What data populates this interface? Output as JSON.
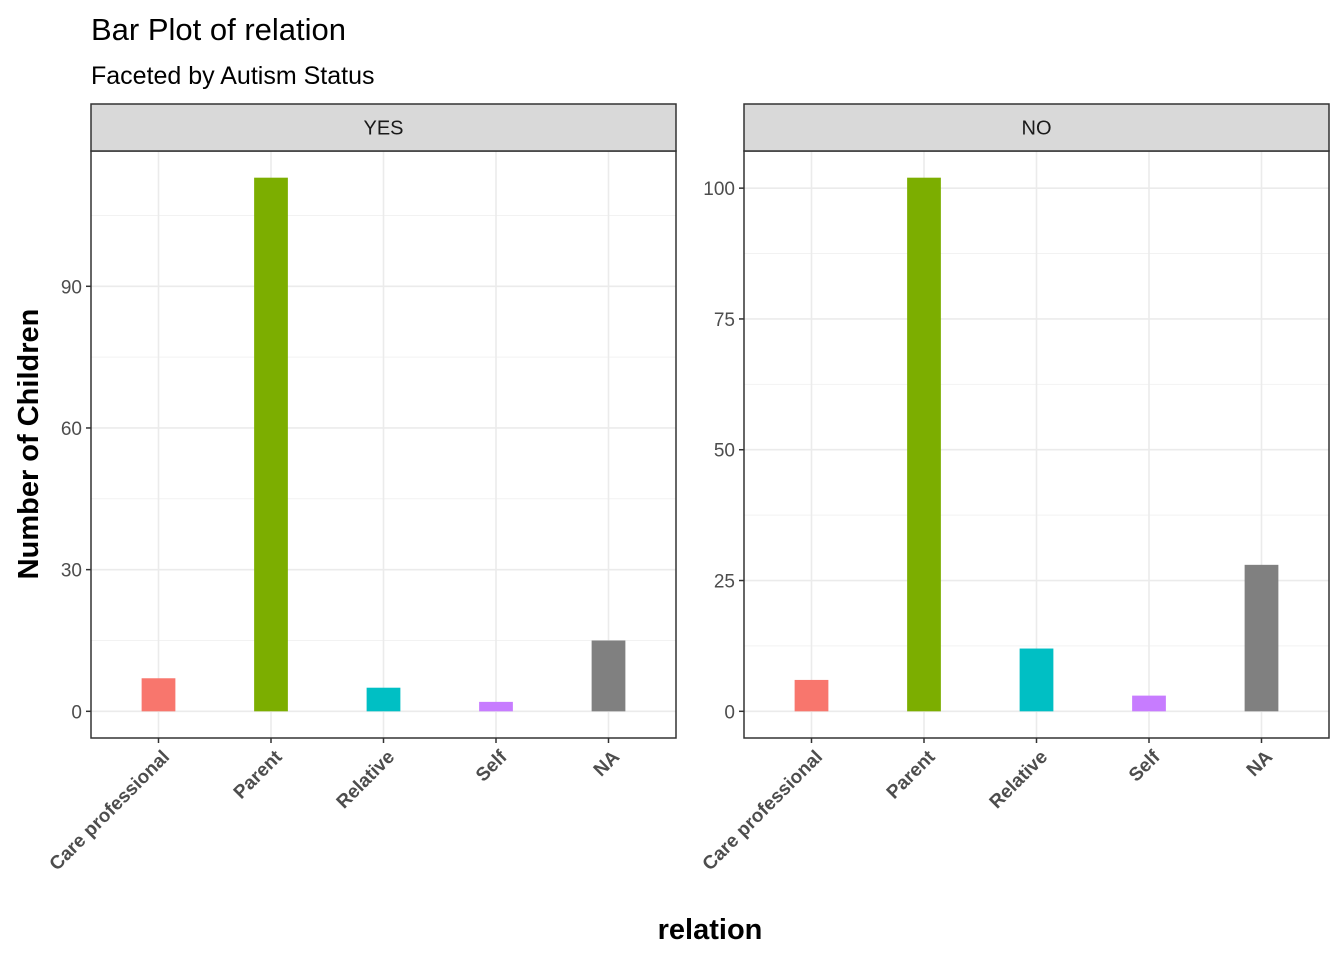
{
  "chart_data": {
    "type": "bar",
    "title": "Bar Plot of relation",
    "subtitle": "Faceted by Autism Status",
    "xlabel": "relation",
    "ylabel": "Number of Children",
    "categories": [
      "Care professional",
      "Parent",
      "Relative",
      "Self",
      "NA"
    ],
    "colors": [
      "#F8766D",
      "#7CAE00",
      "#00BFC4",
      "#C77CFF",
      "#808080"
    ],
    "grid": true,
    "legend": "none",
    "facets": [
      {
        "label": "YES",
        "values": [
          7,
          113,
          5,
          2,
          15
        ],
        "ylim": [
          -5.65,
          118.65
        ],
        "yticks": [
          0,
          30,
          60,
          90
        ]
      },
      {
        "label": "NO",
        "values": [
          6,
          102,
          12,
          3,
          28
        ],
        "ylim": [
          -5.1,
          107.1
        ],
        "yticks": [
          0,
          25,
          50,
          75,
          100
        ]
      }
    ]
  }
}
